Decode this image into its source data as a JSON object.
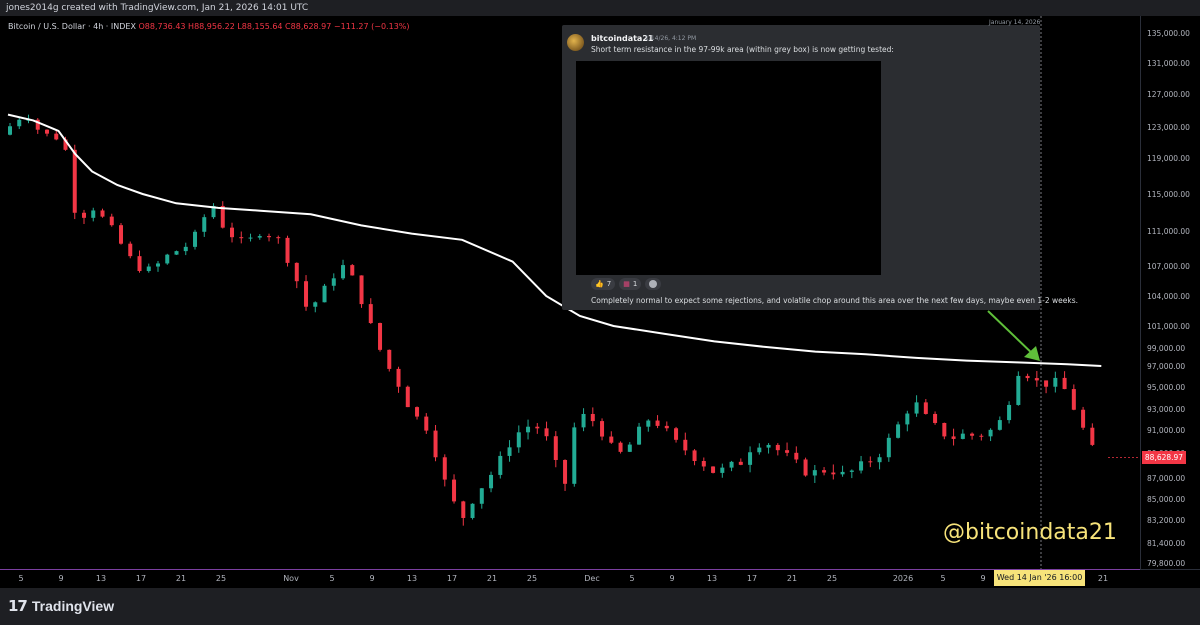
{
  "header": {
    "credit": "jones2014g created with TradingView.com, Jan 21, 2026 14:01 UTC"
  },
  "symbol": {
    "name": "Bitcoin / U.S. Dollar · 4h · INDEX",
    "open": "O88,736.43",
    "high": "H88,956.22",
    "low": "L88,155.64",
    "close": "C88,628.97",
    "change": "−111.27 (−0.13%)"
  },
  "post": {
    "username": "bitcoindata21",
    "timestamp": "1/14/26, 4:12 PM",
    "message": "Short term resistance in the 97-99k area (within grey box) is now getting tested:",
    "reactions": [
      {
        "icon": "thumbs-up-icon",
        "count": "7"
      },
      {
        "icon": "chart-emoji-icon",
        "count": "1"
      },
      {
        "icon": "add-reaction-icon",
        "count": ""
      }
    ],
    "followup": "Completely normal to expect some rejections, and volatile chop around this area over the next few days, maybe even 1-2 weeks."
  },
  "date_note": "January 14, 2026",
  "watermark": "@bitcoindata21",
  "last_price_label": "88,628.97",
  "crosshair_label": "Wed 14 Jan '26   16:00",
  "footer": {
    "logo_mark": "17",
    "logo_text": "TradingView"
  },
  "chart_data": {
    "type": "candlestick",
    "symbol": "Bitcoin / U.S. Dollar",
    "interval": "4h",
    "y_axis_ticks": [
      "135,000.00",
      "131,000.00",
      "127,000.00",
      "123,000.00",
      "119,000.00",
      "115,000.00",
      "111,000.00",
      "107,000.00",
      "104,000.00",
      "101,000.00",
      "99,000.00",
      "97,000.00",
      "95,000.00",
      "93,000.00",
      "91,000.00",
      "89,000.00",
      "87,000.00",
      "85,000.00",
      "83,200.00",
      "81,400.00",
      "79,800.00"
    ],
    "x_axis_ticks": [
      "5",
      "9",
      "13",
      "17",
      "21",
      "25",
      "Nov",
      "5",
      "9",
      "13",
      "17",
      "21",
      "25",
      "Dec",
      "5",
      "9",
      "13",
      "17",
      "21",
      "25",
      "2026",
      "5",
      "9",
      "13",
      "17",
      "21"
    ],
    "price_path": [
      [
        0,
        122000
      ],
      [
        1.5,
        123500
      ],
      [
        3,
        124800
      ],
      [
        4,
        123000
      ],
      [
        5.5,
        122000
      ],
      [
        7,
        121500
      ],
      [
        7.6,
        121000
      ],
      [
        8.3,
        114000
      ],
      [
        9.5,
        112500
      ],
      [
        11,
        113500
      ],
      [
        13,
        111500
      ],
      [
        14.5,
        109200
      ],
      [
        16,
        107000
      ],
      [
        18,
        106500
      ],
      [
        19.5,
        108000
      ],
      [
        21,
        108800
      ],
      [
        22.5,
        109500
      ],
      [
        24,
        112000
      ],
      [
        25,
        114500
      ],
      [
        26,
        112000
      ],
      [
        27.5,
        110500
      ],
      [
        29,
        109500
      ],
      [
        31,
        111000
      ],
      [
        33,
        110000
      ],
      [
        35,
        106000
      ],
      [
        36.5,
        102500
      ],
      [
        38,
        104000
      ],
      [
        39.5,
        106000
      ],
      [
        41,
        107200
      ],
      [
        42.5,
        104500
      ],
      [
        44,
        101000
      ],
      [
        46,
        97000
      ],
      [
        47.5,
        95000
      ],
      [
        49,
        92500
      ],
      [
        50.5,
        91500
      ],
      [
        52,
        88500
      ],
      [
        53.5,
        85000
      ],
      [
        55,
        83500
      ],
      [
        56.5,
        85500
      ],
      [
        58,
        87000
      ],
      [
        59.5,
        88500
      ],
      [
        61,
        90500
      ],
      [
        63,
        91500
      ],
      [
        64.5,
        91000
      ],
      [
        66,
        88000
      ],
      [
        67,
        86000
      ],
      [
        68,
        91000
      ],
      [
        69.5,
        92500
      ],
      [
        71,
        91500
      ],
      [
        72.5,
        89500
      ],
      [
        74,
        88800
      ],
      [
        75.5,
        90500
      ],
      [
        77,
        92000
      ],
      [
        78.5,
        91500
      ],
      [
        80,
        90000
      ],
      [
        82,
        89000
      ],
      [
        83.5,
        88200
      ],
      [
        85,
        87400
      ],
      [
        86.5,
        87800
      ],
      [
        88,
        88300
      ],
      [
        89.5,
        89800
      ],
      [
        91,
        90000
      ],
      [
        92.5,
        89200
      ],
      [
        94,
        88400
      ],
      [
        95.5,
        87600
      ],
      [
        97,
        87400
      ],
      [
        98.5,
        87800
      ],
      [
        100,
        87200
      ],
      [
        101.5,
        87600
      ],
      [
        103,
        88200
      ],
      [
        104.5,
        89000
      ],
      [
        106,
        90500
      ],
      [
        107.5,
        92500
      ],
      [
        108.5,
        93800
      ],
      [
        110,
        92200
      ],
      [
        111.5,
        91000
      ],
      [
        113,
        90300
      ],
      [
        114.5,
        90600
      ],
      [
        116,
        90500
      ],
      [
        117.5,
        90800
      ],
      [
        118.8,
        91800
      ],
      [
        120,
        94000
      ],
      [
        121,
        96500
      ],
      [
        122,
        96300
      ],
      [
        123,
        95500
      ],
      [
        124.5,
        95300
      ],
      [
        126,
        95500
      ],
      [
        127,
        94000
      ],
      [
        128,
        92500
      ],
      [
        129,
        90500
      ],
      [
        130,
        89000
      ],
      [
        130.8,
        88629
      ]
    ],
    "moving_average_path": [
      [
        0,
        124500
      ],
      [
        3,
        123800
      ],
      [
        6,
        122500
      ],
      [
        8,
        119500
      ],
      [
        10,
        117500
      ],
      [
        13,
        116000
      ],
      [
        16,
        115000
      ],
      [
        20,
        114000
      ],
      [
        25,
        113500
      ],
      [
        30,
        113200
      ],
      [
        36,
        112800
      ],
      [
        42,
        111600
      ],
      [
        48,
        110700
      ],
      [
        54,
        110000
      ],
      [
        60,
        107500
      ],
      [
        64,
        104000
      ],
      [
        68,
        102000
      ],
      [
        72,
        101000
      ],
      [
        78,
        100300
      ],
      [
        84,
        99600
      ],
      [
        90,
        99100
      ],
      [
        96,
        98600
      ],
      [
        102,
        98300
      ],
      [
        108,
        97900
      ],
      [
        114,
        97600
      ],
      [
        120,
        97400
      ],
      [
        126,
        97200
      ],
      [
        130,
        97000
      ]
    ],
    "current_price": 88628.97,
    "annotations": [
      {
        "type": "arrow",
        "label": "",
        "points_to_date": "Wed 14 Jan '26 16:00",
        "price": 97000
      },
      {
        "type": "vertical-line",
        "date": "Wed 14 Jan '26 16:00"
      }
    ]
  }
}
